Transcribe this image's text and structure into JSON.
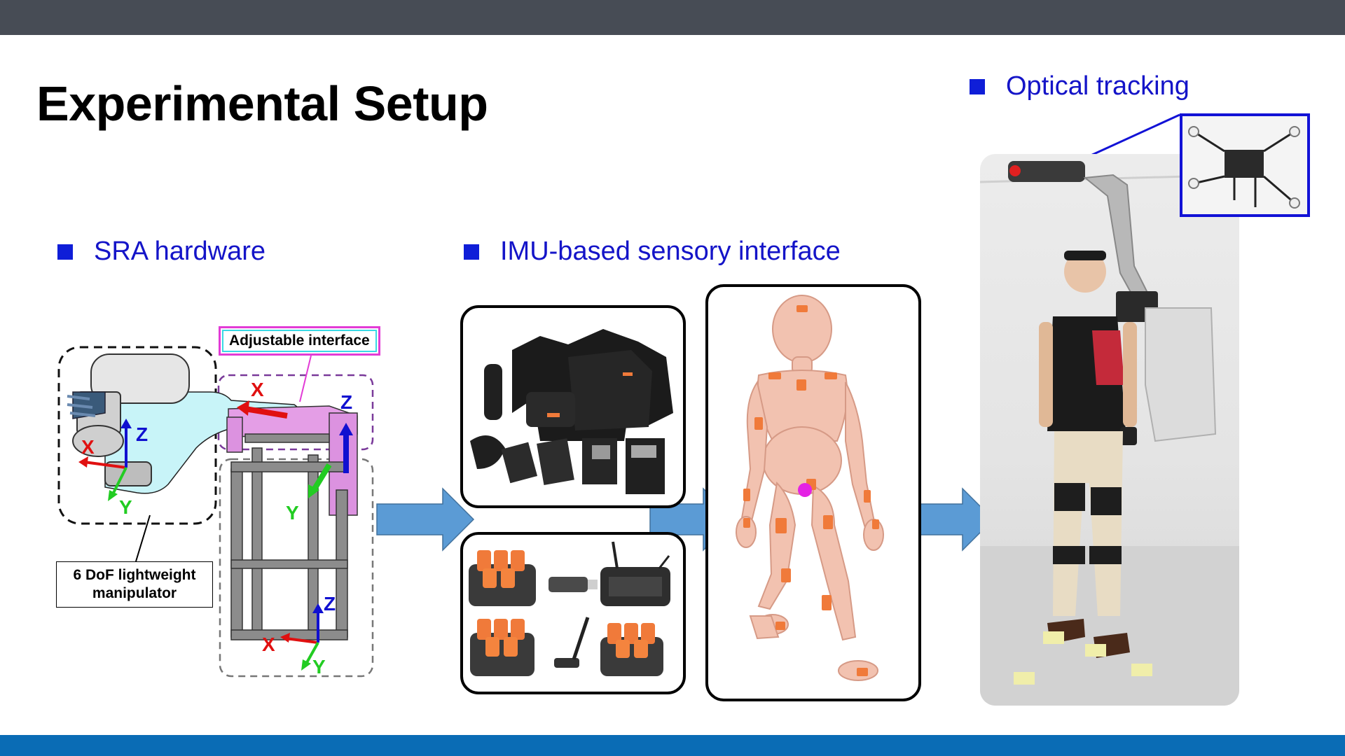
{
  "slide": {
    "title": "Experimental Setup"
  },
  "sections": {
    "sra": {
      "heading": "SRA hardware"
    },
    "imu": {
      "heading": "IMU-based sensory interface"
    },
    "optical": {
      "heading": "Optical tracking"
    }
  },
  "labels": {
    "adjustable_interface": "Adjustable interface",
    "manipulator_line1": "6 DoF lightweight",
    "manipulator_line2": "manipulator"
  },
  "axes": {
    "x": "X",
    "y": "Y",
    "z": "Z"
  },
  "colors": {
    "top_bar": "#474c55",
    "bottom_bar": "#0a6cb5",
    "heading_text": "#1414c8",
    "bullet": "#0f1ed8",
    "flow_arrow": "#5b9bd5",
    "axis_x": "#e01010",
    "axis_y": "#22cc22",
    "axis_z": "#1010d0",
    "imu_sensor": "#f07a3a"
  }
}
